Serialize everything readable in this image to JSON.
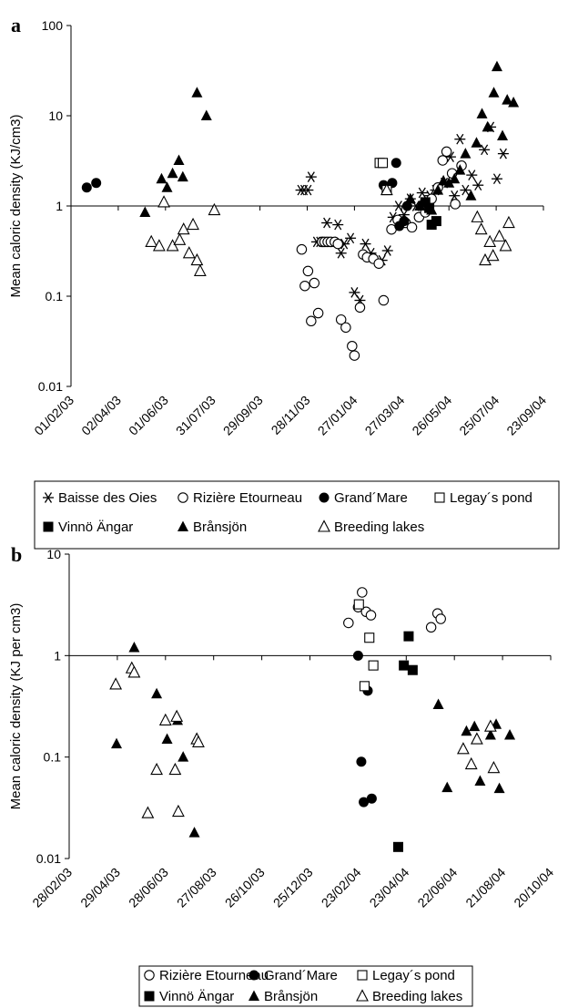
{
  "chart_data": [
    {
      "type": "scatter",
      "panel_label": "a",
      "ylabel": "Mean caloric density (KJ/cm3)",
      "y_scale": "log",
      "ylim": [
        0.01,
        100
      ],
      "y_ticks": [
        0.01,
        0.1,
        1,
        10,
        100
      ],
      "y_tick_labels": [
        "0.01",
        "0.1",
        "1",
        "10",
        "100"
      ],
      "x_axis": "date",
      "xlim": [
        "2003-02-01",
        "2004-09-23"
      ],
      "x_ticks": [
        "2003-02-01",
        "2003-04-02",
        "2003-06-01",
        "2003-07-31",
        "2003-09-29",
        "2003-11-28",
        "2004-01-27",
        "2004-03-27",
        "2004-05-26",
        "2004-07-25",
        "2004-09-23"
      ],
      "x_tick_labels": [
        "01/02/03",
        "02/04/03",
        "01/06/03",
        "31/07/03",
        "29/09/03",
        "28/11/03",
        "27/01/04",
        "27/03/04",
        "26/05/04",
        "25/07/04",
        "23/09/04"
      ],
      "legend_position": "bottom",
      "legend_rows": [
        [
          "Baisse des Oies",
          "Rizière Etourneau",
          "Grand´Mare",
          "Legay´s pond"
        ],
        [
          "Vinnö Ängar",
          "Brånsjön",
          "Breeding lakes"
        ]
      ],
      "series": [
        {
          "name": "Baisse des Oies",
          "marker": "asterisk",
          "points": [
            [
              "2003-11-20",
              1.5
            ],
            [
              "2003-11-24",
              1.5
            ],
            [
              "2003-11-29",
              1.5
            ],
            [
              "2003-12-03",
              2.1
            ],
            [
              "2003-12-10",
              0.4
            ],
            [
              "2003-12-14",
              0.4
            ],
            [
              "2003-12-19",
              0.4
            ],
            [
              "2003-12-23",
              0.65
            ],
            [
              "2003-12-30",
              0.4
            ],
            [
              "2004-01-06",
              0.62
            ],
            [
              "2004-01-10",
              0.3
            ],
            [
              "2004-01-14",
              0.38
            ],
            [
              "2004-01-22",
              0.44
            ],
            [
              "2004-01-27",
              0.11
            ],
            [
              "2004-02-03",
              0.09
            ],
            [
              "2004-02-10",
              0.38
            ],
            [
              "2004-02-17",
              0.3
            ],
            [
              "2004-03-02",
              0.25
            ],
            [
              "2004-03-09",
              0.32
            ],
            [
              "2004-03-16",
              0.75
            ],
            [
              "2004-03-23",
              1.0
            ],
            [
              "2004-03-30",
              0.8
            ],
            [
              "2004-04-07",
              1.2
            ],
            [
              "2004-04-14",
              1.0
            ],
            [
              "2004-04-22",
              1.4
            ],
            [
              "2004-05-02",
              1.3
            ],
            [
              "2004-05-09",
              1.5
            ],
            [
              "2004-05-20",
              1.8
            ],
            [
              "2004-05-28",
              3.5
            ],
            [
              "2004-06-02",
              1.3
            ],
            [
              "2004-06-09",
              5.5
            ],
            [
              "2004-06-16",
              1.5
            ],
            [
              "2004-06-24",
              2.2
            ],
            [
              "2004-07-02",
              1.7
            ],
            [
              "2004-07-10",
              4.2
            ],
            [
              "2004-07-18",
              7.5
            ],
            [
              "2004-07-26",
              2.0
            ],
            [
              "2004-08-03",
              3.8
            ]
          ]
        },
        {
          "name": "Rizière Etourneau",
          "marker": "circle-open",
          "points": [
            [
              "2003-11-21",
              0.33
            ],
            [
              "2003-11-25",
              0.13
            ],
            [
              "2003-11-29",
              0.19
            ],
            [
              "2003-12-03",
              0.053
            ],
            [
              "2003-12-07",
              0.14
            ],
            [
              "2003-12-12",
              0.065
            ],
            [
              "2003-12-17",
              0.4
            ],
            [
              "2003-12-20",
              0.4
            ],
            [
              "2003-12-24",
              0.4
            ],
            [
              "2003-12-28",
              0.4
            ],
            [
              "2004-01-02",
              0.4
            ],
            [
              "2004-01-06",
              0.38
            ],
            [
              "2004-01-10",
              0.055
            ],
            [
              "2004-01-16",
              0.045
            ],
            [
              "2004-01-24",
              0.028
            ],
            [
              "2004-01-27",
              0.022
            ],
            [
              "2004-02-03",
              0.075
            ],
            [
              "2004-02-07",
              0.29
            ],
            [
              "2004-02-12",
              0.27
            ],
            [
              "2004-02-20",
              0.26
            ],
            [
              "2004-02-27",
              0.23
            ],
            [
              "2004-03-04",
              0.09
            ],
            [
              "2004-03-14",
              0.55
            ],
            [
              "2004-03-22",
              0.7
            ],
            [
              "2004-04-01",
              0.65
            ],
            [
              "2004-04-09",
              0.58
            ],
            [
              "2004-04-18",
              0.75
            ],
            [
              "2004-04-26",
              0.85
            ],
            [
              "2004-05-04",
              1.2
            ],
            [
              "2004-05-12",
              1.6
            ],
            [
              "2004-05-18",
              3.2
            ],
            [
              "2004-05-23",
              4.0
            ],
            [
              "2004-05-30",
              2.3
            ],
            [
              "2004-06-03",
              1.05
            ],
            [
              "2004-06-11",
              2.8
            ]
          ]
        },
        {
          "name": "Grand´Mare",
          "marker": "circle-filled",
          "points": [
            [
              "2003-02-21",
              1.6
            ],
            [
              "2003-03-05",
              1.8
            ],
            [
              "2004-03-04",
              1.7
            ],
            [
              "2004-03-15",
              1.8
            ],
            [
              "2004-03-20",
              3.0
            ],
            [
              "2004-03-24",
              0.6
            ],
            [
              "2004-03-30",
              0.68
            ],
            [
              "2004-04-03",
              1.0
            ]
          ]
        },
        {
          "name": "Legay´s pond",
          "marker": "square-open",
          "points": [
            [
              "2004-02-28",
              3.0
            ],
            [
              "2004-03-03",
              3.0
            ],
            [
              "2004-03-08",
              1.5
            ]
          ]
        },
        {
          "name": "Vinnö Ängar",
          "marker": "square-filled",
          "points": [
            [
              "2004-04-26",
              1.1
            ],
            [
              "2004-05-01",
              0.95
            ],
            [
              "2004-05-04",
              0.62
            ],
            [
              "2004-05-10",
              0.68
            ]
          ]
        },
        {
          "name": "Brånsjön",
          "marker": "triangle-filled",
          "points": [
            [
              "2003-05-06",
              0.85
            ],
            [
              "2003-05-27",
              2.0
            ],
            [
              "2003-06-03",
              1.6
            ],
            [
              "2003-06-10",
              2.3
            ],
            [
              "2003-06-18",
              3.2
            ],
            [
              "2003-06-23",
              2.1
            ],
            [
              "2003-07-11",
              18.0
            ],
            [
              "2003-07-23",
              10.0
            ],
            [
              "2004-04-07",
              1.2
            ],
            [
              "2004-04-19",
              1.0
            ],
            [
              "2004-05-04",
              0.9
            ],
            [
              "2004-05-12",
              1.5
            ],
            [
              "2004-05-19",
              1.9
            ],
            [
              "2004-05-26",
              1.8
            ],
            [
              "2004-06-02",
              2.0
            ],
            [
              "2004-06-09",
              2.5
            ],
            [
              "2004-06-16",
              3.8
            ],
            [
              "2004-06-23",
              1.3
            ],
            [
              "2004-06-30",
              5.0
            ],
            [
              "2004-07-07",
              10.5
            ],
            [
              "2004-07-14",
              7.5
            ],
            [
              "2004-07-22",
              18.0
            ],
            [
              "2004-07-26",
              35.0
            ],
            [
              "2004-08-02",
              6.0
            ],
            [
              "2004-08-08",
              15.0
            ],
            [
              "2004-08-16",
              14.0
            ]
          ]
        },
        {
          "name": "Breeding lakes",
          "marker": "triangle-open",
          "points": [
            [
              "2003-05-14",
              0.4
            ],
            [
              "2003-05-24",
              0.36
            ],
            [
              "2003-05-30",
              1.1
            ],
            [
              "2003-06-10",
              0.36
            ],
            [
              "2003-06-19",
              0.42
            ],
            [
              "2003-06-24",
              0.55
            ],
            [
              "2003-07-01",
              0.3
            ],
            [
              "2003-07-06",
              0.62
            ],
            [
              "2003-07-11",
              0.25
            ],
            [
              "2003-07-15",
              0.19
            ],
            [
              "2003-08-02",
              0.9
            ],
            [
              "2004-03-08",
              1.5
            ],
            [
              "2004-07-01",
              0.75
            ],
            [
              "2004-07-06",
              0.55
            ],
            [
              "2004-07-11",
              0.25
            ],
            [
              "2004-07-17",
              0.4
            ],
            [
              "2004-07-21",
              0.28
            ],
            [
              "2004-07-29",
              0.46
            ],
            [
              "2004-08-06",
              0.36
            ],
            [
              "2004-08-10",
              0.65
            ]
          ]
        }
      ]
    },
    {
      "type": "scatter",
      "panel_label": "b",
      "ylabel": "Mean caloric density (KJ per cm3)",
      "y_scale": "log",
      "ylim": [
        0.01,
        10
      ],
      "y_ticks": [
        0.01,
        0.1,
        1,
        10
      ],
      "y_tick_labels": [
        "0.01",
        "0.1",
        "1",
        "10"
      ],
      "x_axis": "date",
      "xlim": [
        "2003-02-28",
        "2004-10-20"
      ],
      "x_ticks": [
        "2003-02-28",
        "2003-04-29",
        "2003-06-28",
        "2003-08-27",
        "2003-10-26",
        "2003-12-25",
        "2004-02-23",
        "2004-04-23",
        "2004-06-22",
        "2004-08-21",
        "2004-10-20"
      ],
      "x_tick_labels": [
        "28/02/03",
        "29/04/03",
        "28/06/03",
        "27/08/03",
        "26/10/03",
        "25/12/03",
        "23/02/04",
        "23/04/04",
        "22/06/04",
        "21/08/04",
        "20/10/04"
      ],
      "legend_position": "bottom",
      "legend_rows": [
        [
          "Rizière Etourneau",
          "Grand´Mare",
          "Legay´s pond"
        ],
        [
          "Vinnö Ängar",
          "Brånsjön",
          "Breeding lakes"
        ]
      ],
      "series": [
        {
          "name": "Rizière Etourneau",
          "marker": "circle-open",
          "points": [
            [
              "2004-02-11",
              2.1
            ],
            [
              "2004-02-23",
              3.0
            ],
            [
              "2004-02-28",
              4.2
            ],
            [
              "2004-03-04",
              2.7
            ],
            [
              "2004-03-10",
              2.5
            ],
            [
              "2004-05-24",
              1.9
            ],
            [
              "2004-06-01",
              2.6
            ],
            [
              "2004-06-05",
              2.3
            ]
          ]
        },
        {
          "name": "Grand´Mare",
          "marker": "circle-filled",
          "points": [
            [
              "2004-02-23",
              1.0
            ],
            [
              "2004-02-27",
              0.09
            ],
            [
              "2004-03-01",
              0.036
            ],
            [
              "2004-03-06",
              0.45
            ],
            [
              "2004-03-11",
              0.039
            ]
          ]
        },
        {
          "name": "Legay´s pond",
          "marker": "square-open",
          "points": [
            [
              "2004-02-24",
              3.2
            ],
            [
              "2004-03-02",
              0.5
            ],
            [
              "2004-03-08",
              1.5
            ],
            [
              "2004-03-13",
              0.8
            ]
          ]
        },
        {
          "name": "Vinnö Ängar",
          "marker": "square-filled",
          "points": [
            [
              "2004-04-13",
              0.013
            ],
            [
              "2004-04-20",
              0.8
            ],
            [
              "2004-04-26",
              1.55
            ],
            [
              "2004-05-01",
              0.72
            ]
          ]
        },
        {
          "name": "Brånsjön",
          "marker": "triangle-filled",
          "points": [
            [
              "2003-04-28",
              0.135
            ],
            [
              "2003-05-20",
              1.2
            ],
            [
              "2003-06-17",
              0.42
            ],
            [
              "2003-06-30",
              0.15
            ],
            [
              "2003-07-13",
              0.23
            ],
            [
              "2003-07-20",
              0.1
            ],
            [
              "2003-08-03",
              0.018
            ],
            [
              "2004-06-02",
              0.33
            ],
            [
              "2004-06-13",
              0.05
            ],
            [
              "2004-07-07",
              0.18
            ],
            [
              "2004-07-17",
              0.2
            ],
            [
              "2004-07-24",
              0.058
            ],
            [
              "2004-08-06",
              0.165
            ],
            [
              "2004-08-13",
              0.21
            ],
            [
              "2004-08-17",
              0.049
            ],
            [
              "2004-08-30",
              0.165
            ]
          ]
        },
        {
          "name": "Breeding lakes",
          "marker": "triangle-open",
          "points": [
            [
              "2003-04-27",
              0.52
            ],
            [
              "2003-05-17",
              0.75
            ],
            [
              "2003-05-20",
              0.68
            ],
            [
              "2003-06-06",
              0.028
            ],
            [
              "2003-06-17",
              0.075
            ],
            [
              "2003-06-28",
              0.23
            ],
            [
              "2003-07-10",
              0.075
            ],
            [
              "2003-07-12",
              0.25
            ],
            [
              "2003-07-14",
              0.029
            ],
            [
              "2003-08-06",
              0.15
            ],
            [
              "2003-08-08",
              0.14
            ],
            [
              "2004-07-03",
              0.12
            ],
            [
              "2004-07-13",
              0.085
            ],
            [
              "2004-07-20",
              0.15
            ],
            [
              "2004-08-06",
              0.2
            ],
            [
              "2004-08-10",
              0.078
            ]
          ]
        }
      ]
    }
  ],
  "colors": {
    "marker": "#000000",
    "axis": "#000000",
    "background": "#ffffff"
  }
}
